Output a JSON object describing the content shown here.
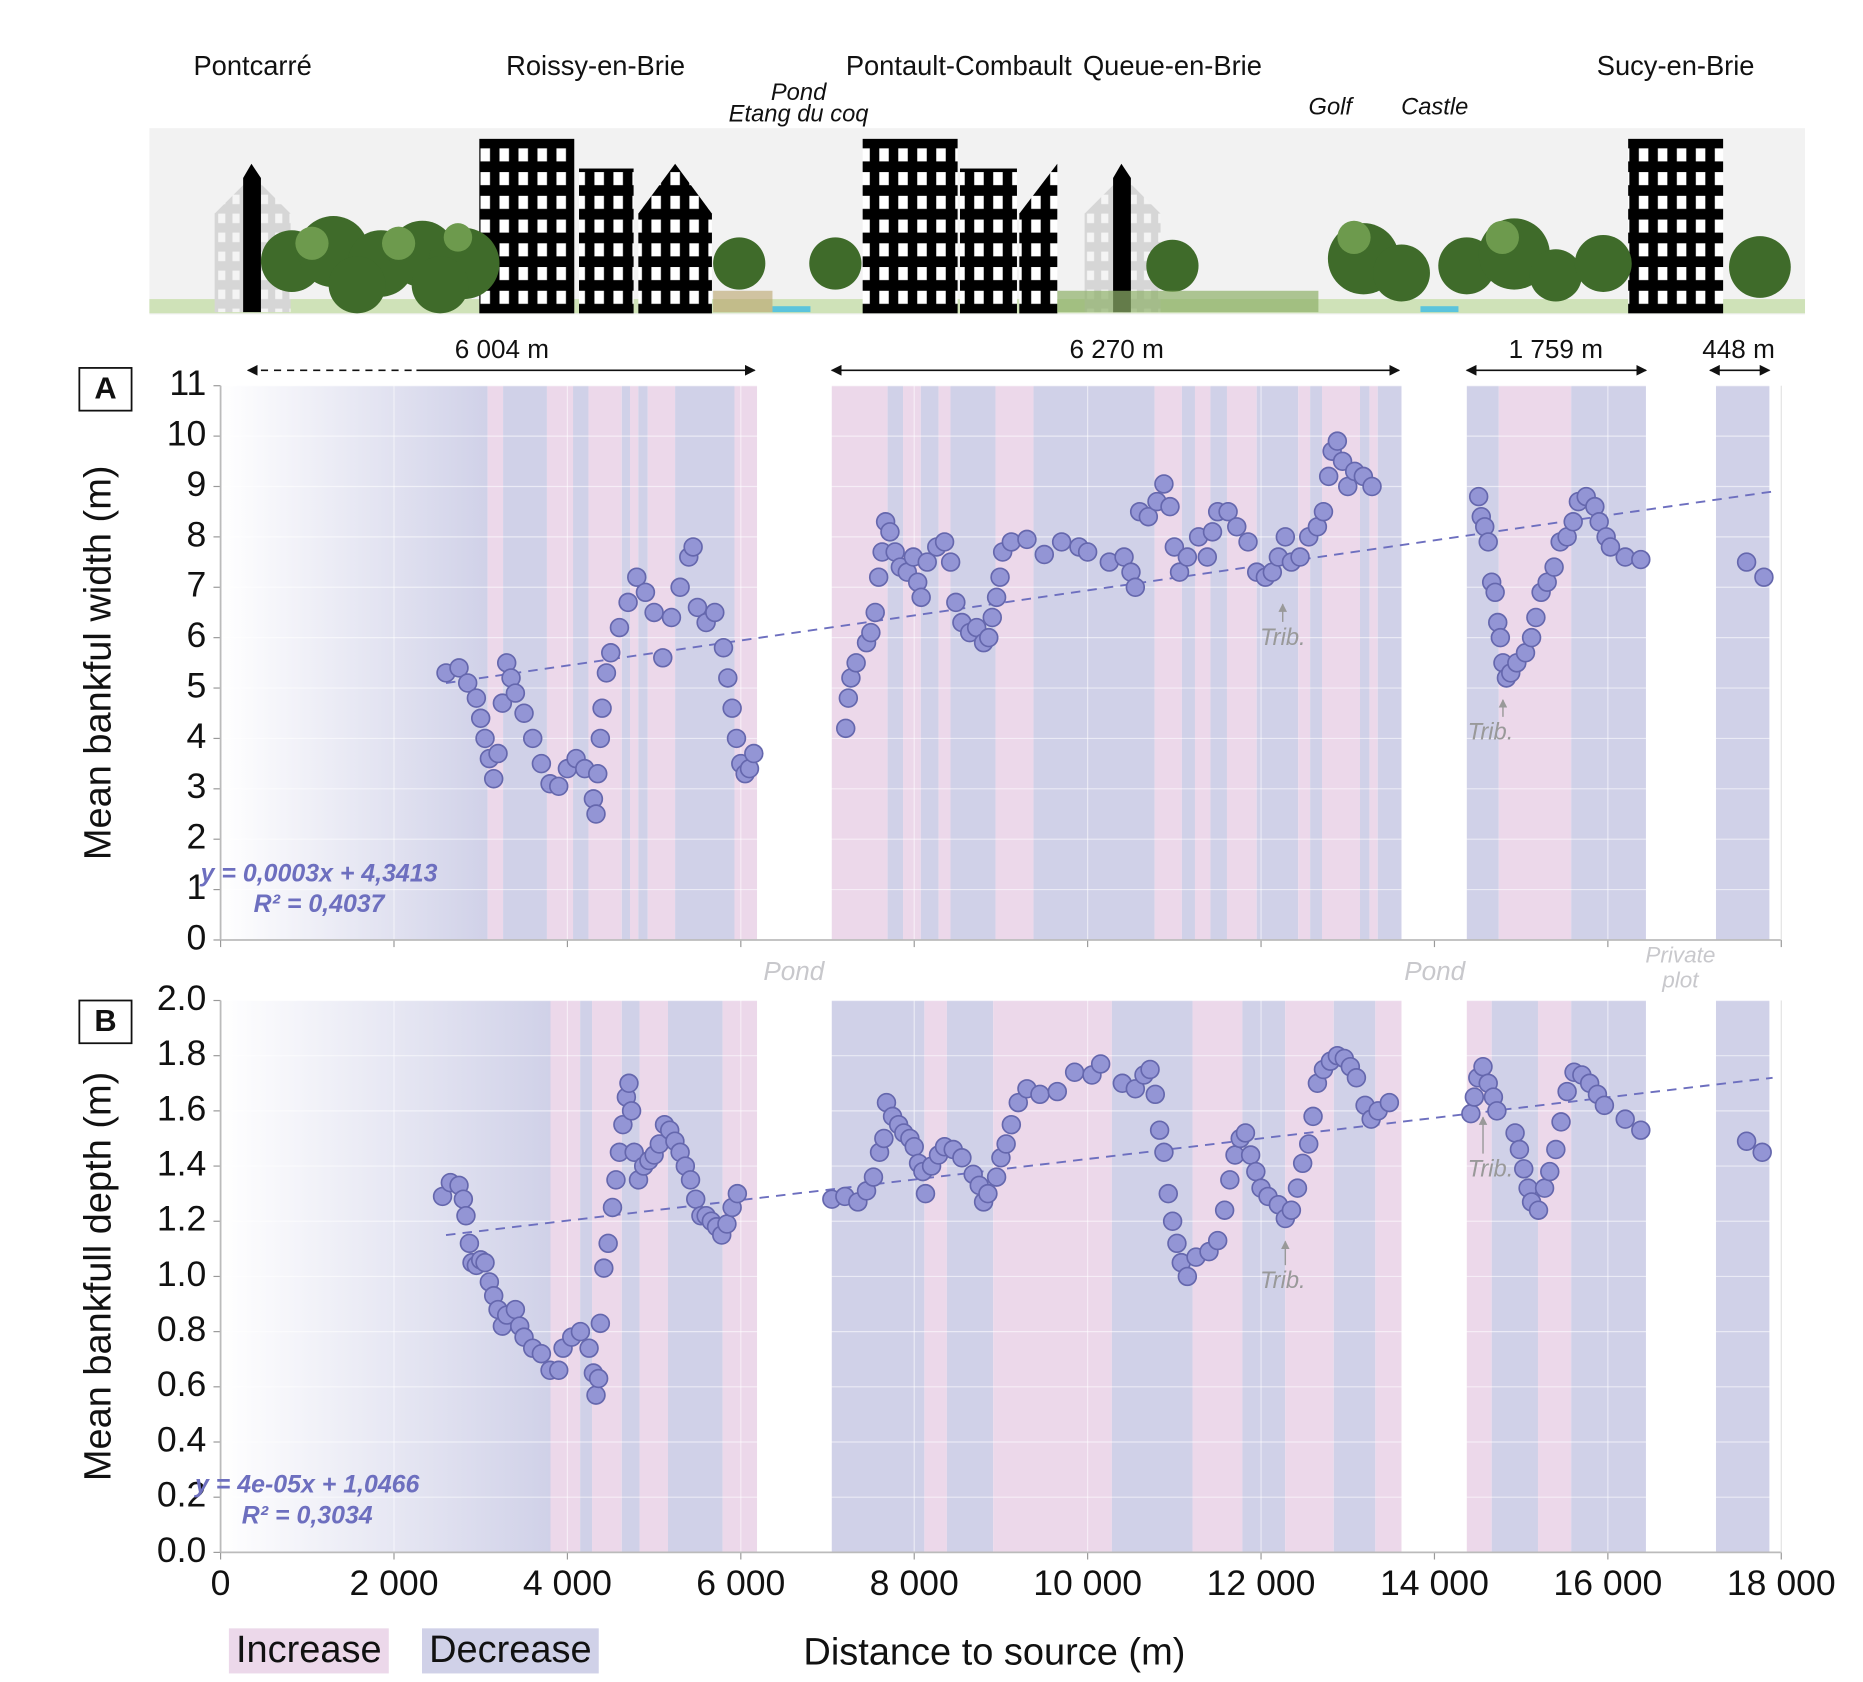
{
  "illustration": {
    "places": [
      "Pontcarré",
      "Roissy-en-Brie",
      "Pontault-Combault",
      "Queue-en-Brie",
      "Sucy-en-Brie"
    ],
    "features": [
      "Pond",
      "Etang du coq",
      "Golf",
      "Castle"
    ],
    "distances": [
      "6 004  m",
      "6 270 m",
      "1 759 m",
      "448 m"
    ],
    "gap_labels": [
      "Pond",
      "Pond",
      "Private",
      "plot"
    ]
  },
  "chart_data": [
    {
      "type": "scatter",
      "panel": "A",
      "ylabel": "Mean bankful width (m)",
      "xlim": [
        0,
        18000
      ],
      "ylim": [
        0,
        11
      ],
      "xticks": [
        0,
        2000,
        4000,
        6000,
        8000,
        10000,
        12000,
        14000,
        16000,
        18000
      ],
      "yticks": [
        0,
        1,
        2,
        3,
        4,
        5,
        6,
        7,
        8,
        9,
        10,
        11
      ],
      "grid": true,
      "color": "#9395d5",
      "bands": [
        {
          "from": 0,
          "to": 3080,
          "color": "#d0d1e8"
        },
        {
          "from": 3080,
          "to": 3258,
          "color": "#ecd8ea"
        },
        {
          "from": 3258,
          "to": 3764,
          "color": "#d0d1e8"
        },
        {
          "from": 3764,
          "to": 4065,
          "color": "#ecd8ea"
        },
        {
          "from": 4065,
          "to": 4243,
          "color": "#d0d1e8"
        },
        {
          "from": 4243,
          "to": 4627,
          "color": "#ecd8ea"
        },
        {
          "from": 4627,
          "to": 4722,
          "color": "#d0d1e8"
        },
        {
          "from": 4722,
          "to": 4818,
          "color": "#ecd8ea"
        },
        {
          "from": 4818,
          "to": 4927,
          "color": "#d0d1e8"
        },
        {
          "from": 4927,
          "to": 5242,
          "color": "#ecd8ea"
        },
        {
          "from": 5242,
          "to": 5927,
          "color": "#d0d1e8"
        },
        {
          "from": 5927,
          "to": 6187,
          "color": "#ecd8ea"
        },
        {
          "from": 7049,
          "to": 7693,
          "color": "#ecd8ea"
        },
        {
          "from": 7693,
          "to": 7871,
          "color": "#d0d1e8"
        },
        {
          "from": 7871,
          "to": 8076,
          "color": "#ecd8ea"
        },
        {
          "from": 8076,
          "to": 8281,
          "color": "#d0d1e8"
        },
        {
          "from": 8281,
          "to": 8418,
          "color": "#ecd8ea"
        },
        {
          "from": 8418,
          "to": 8938,
          "color": "#d0d1e8"
        },
        {
          "from": 8938,
          "to": 9376,
          "color": "#ecd8ea"
        },
        {
          "from": 9376,
          "to": 10772,
          "color": "#d0d1e8"
        },
        {
          "from": 10772,
          "to": 11087,
          "color": "#ecd8ea"
        },
        {
          "from": 11087,
          "to": 11238,
          "color": "#d0d1e8"
        },
        {
          "from": 11238,
          "to": 11416,
          "color": "#ecd8ea"
        },
        {
          "from": 11416,
          "to": 11607,
          "color": "#d0d1e8"
        },
        {
          "from": 11607,
          "to": 11950,
          "color": "#ecd8ea"
        },
        {
          "from": 11950,
          "to": 12429,
          "color": "#d0d1e8"
        },
        {
          "from": 12429,
          "to": 12566,
          "color": "#ecd8ea"
        },
        {
          "from": 12566,
          "to": 12703,
          "color": "#d0d1e8"
        },
        {
          "from": 12703,
          "to": 13141,
          "color": "#ecd8ea"
        },
        {
          "from": 13141,
          "to": 13250,
          "color": "#d0d1e8"
        },
        {
          "from": 13250,
          "to": 13346,
          "color": "#ecd8ea"
        },
        {
          "from": 13346,
          "to": 13620,
          "color": "#d0d1e8"
        },
        {
          "from": 14373,
          "to": 14742,
          "color": "#d0d1e8"
        },
        {
          "from": 14742,
          "to": 15577,
          "color": "#ecd8ea"
        },
        {
          "from": 15577,
          "to": 16439,
          "color": "#d0d1e8"
        },
        {
          "from": 17247,
          "to": 17863,
          "color": "#d0d1e8"
        }
      ],
      "x": [
        2600,
        2750,
        2850,
        2950,
        3000,
        3050,
        3100,
        3150,
        3200,
        3250,
        3300,
        3350,
        3400,
        3500,
        3600,
        3700,
        3800,
        3900,
        4000,
        4100,
        4200,
        4300,
        4330,
        4350,
        4380,
        4400,
        4450,
        4500,
        4600,
        4700,
        4800,
        4900,
        5000,
        5100,
        5200,
        5300,
        5400,
        5450,
        5500,
        5600,
        5700,
        5800,
        5850,
        5900,
        5950,
        6000,
        6050,
        6100,
        6150,
        7210,
        7240,
        7270,
        7330,
        7450,
        7500,
        7550,
        7590,
        7630,
        7670,
        7720,
        7780,
        7840,
        7920,
        7990,
        8040,
        8080,
        8150,
        8260,
        8350,
        8420,
        8480,
        8550,
        8640,
        8720,
        8800,
        8860,
        8900,
        8950,
        8990,
        9020,
        9120,
        9300,
        9500,
        9700,
        9900,
        10000,
        10250,
        10420,
        10500,
        10550,
        10600,
        10700,
        10800,
        10880,
        10950,
        11000,
        11060,
        11150,
        11280,
        11380,
        11440,
        11500,
        11620,
        11720,
        11850,
        11950,
        12050,
        12130,
        12200,
        12280,
        12350,
        12450,
        12550,
        12650,
        12720,
        12780,
        12820,
        12880,
        12940,
        13000,
        13080,
        13180,
        13280,
        14510,
        14540,
        14580,
        14620,
        14660,
        14700,
        14730,
        14760,
        14790,
        14830,
        14880,
        14950,
        15050,
        15120,
        15170,
        15230,
        15300,
        15380,
        15450,
        15530,
        15600,
        15660,
        15750,
        15850,
        15900,
        15980,
        16030,
        16200,
        16380,
        17600,
        17800
      ],
      "values": [
        5.3,
        5.4,
        5.1,
        4.8,
        4.4,
        4.0,
        3.6,
        3.2,
        3.7,
        4.7,
        5.5,
        5.2,
        4.9,
        4.5,
        4.0,
        3.5,
        3.1,
        3.05,
        3.4,
        3.6,
        3.4,
        2.8,
        2.5,
        3.3,
        4.0,
        4.6,
        5.3,
        5.7,
        6.2,
        6.7,
        7.2,
        6.9,
        6.5,
        5.6,
        6.4,
        7.0,
        7.6,
        7.8,
        6.6,
        6.3,
        6.5,
        5.8,
        5.2,
        4.6,
        4.0,
        3.5,
        3.3,
        3.4,
        3.7,
        4.2,
        4.8,
        5.2,
        5.5,
        5.9,
        6.1,
        6.5,
        7.2,
        7.7,
        8.3,
        8.1,
        7.7,
        7.4,
        7.3,
        7.6,
        7.1,
        6.8,
        7.5,
        7.8,
        7.9,
        7.5,
        6.7,
        6.3,
        6.1,
        6.2,
        5.9,
        6.0,
        6.4,
        6.8,
        7.2,
        7.7,
        7.9,
        7.95,
        7.65,
        7.9,
        7.8,
        7.7,
        7.5,
        7.6,
        7.3,
        7.0,
        8.5,
        8.4,
        8.7,
        9.05,
        8.6,
        7.8,
        7.3,
        7.6,
        8.0,
        7.6,
        8.1,
        8.5,
        8.5,
        8.2,
        7.9,
        7.3,
        7.2,
        7.3,
        7.6,
        8.0,
        7.5,
        7.6,
        8.0,
        8.2,
        8.5,
        9.2,
        9.7,
        9.9,
        9.5,
        9.0,
        9.3,
        9.2,
        9.0,
        8.8,
        8.4,
        8.2,
        7.9,
        7.1,
        6.9,
        6.3,
        6.0,
        5.5,
        5.2,
        5.3,
        5.5,
        5.7,
        6.0,
        6.4,
        6.9,
        7.1,
        7.4,
        7.9,
        8.0,
        8.3,
        8.7,
        8.8,
        8.6,
        8.3,
        8.0,
        7.8,
        7.6,
        7.55,
        7.5,
        7.2
      ],
      "trendline": {
        "x": [
          2600,
          17900
        ],
        "y": [
          5.1,
          8.9
        ]
      },
      "equation": "y = 0,0003x + 4,3413",
      "r2": "R² = 0,4037",
      "annotations": [
        "Trib.",
        "Trib."
      ]
    },
    {
      "type": "scatter",
      "panel": "B",
      "ylabel": "Mean  bankfull depth (m)",
      "xlabel": "Distance to source (m)",
      "xlim": [
        0,
        18000
      ],
      "ylim": [
        0,
        2
      ],
      "xticks": [
        0,
        {
          "value": 2000,
          "label": "2 000"
        },
        {
          "value": 4000,
          "label": "4 000"
        },
        {
          "value": 6000,
          "label": "6 000"
        },
        {
          "value": 8000,
          "label": "8 000"
        },
        {
          "value": 10000,
          "label": "10 000"
        },
        {
          "value": 12000,
          "label": "12 000"
        },
        {
          "value": 14000,
          "label": "14 000"
        },
        {
          "value": 16000,
          "label": "16 000"
        },
        {
          "value": 18000,
          "label": "18 000"
        }
      ],
      "yticks": [
        {
          "value": 0,
          "label": "0.0"
        },
        0.2,
        0.4,
        0.6,
        0.8,
        {
          "value": 1,
          "label": "1.0"
        },
        1.2,
        1.4,
        1.6,
        1.8,
        {
          "value": 2,
          "label": "2.0"
        }
      ],
      "grid": true,
      "color": "#9395d5",
      "band_types": [
        {
          "name": "Increase",
          "color": "#ecd8ea"
        },
        {
          "name": "Decrease",
          "color": "#d0d1e8"
        }
      ],
      "bands": [
        {
          "from": 0,
          "to": 3805,
          "color": "#d0d1e8"
        },
        {
          "from": 3805,
          "to": 4147,
          "color": "#ecd8ea"
        },
        {
          "from": 4147,
          "to": 4284,
          "color": "#d0d1e8"
        },
        {
          "from": 4284,
          "to": 4627,
          "color": "#ecd8ea"
        },
        {
          "from": 4627,
          "to": 4832,
          "color": "#d0d1e8"
        },
        {
          "from": 4832,
          "to": 5160,
          "color": "#ecd8ea"
        },
        {
          "from": 5160,
          "to": 5790,
          "color": "#d0d1e8"
        },
        {
          "from": 5790,
          "to": 6187,
          "color": "#ecd8ea"
        },
        {
          "from": 7049,
          "to": 8117,
          "color": "#d0d1e8"
        },
        {
          "from": 8117,
          "to": 8377,
          "color": "#ecd8ea"
        },
        {
          "from": 8377,
          "to": 8911,
          "color": "#d0d1e8"
        },
        {
          "from": 8911,
          "to": 10280,
          "color": "#ecd8ea"
        },
        {
          "from": 10280,
          "to": 11210,
          "color": "#d0d1e8"
        },
        {
          "from": 11210,
          "to": 11785,
          "color": "#ecd8ea"
        },
        {
          "from": 11785,
          "to": 12278,
          "color": "#d0d1e8"
        },
        {
          "from": 12278,
          "to": 12839,
          "color": "#ecd8ea"
        },
        {
          "from": 12839,
          "to": 13318,
          "color": "#d0d1e8"
        },
        {
          "from": 13318,
          "to": 13620,
          "color": "#ecd8ea"
        },
        {
          "from": 14373,
          "to": 14660,
          "color": "#ecd8ea"
        },
        {
          "from": 14660,
          "to": 15194,
          "color": "#d0d1e8"
        },
        {
          "from": 15194,
          "to": 15577,
          "color": "#ecd8ea"
        },
        {
          "from": 15577,
          "to": 16439,
          "color": "#d0d1e8"
        },
        {
          "from": 17247,
          "to": 17863,
          "color": "#d0d1e8"
        }
      ],
      "x": [
        2560,
        2650,
        2750,
        2800,
        2830,
        2870,
        2900,
        2950,
        3000,
        3050,
        3100,
        3150,
        3200,
        3250,
        3300,
        3400,
        3450,
        3500,
        3600,
        3700,
        3800,
        3900,
        3950,
        4050,
        4150,
        4250,
        4300,
        4330,
        4360,
        4380,
        4420,
        4470,
        4520,
        4560,
        4600,
        4640,
        4680,
        4710,
        4740,
        4770,
        4820,
        4880,
        4940,
        5000,
        5060,
        5120,
        5180,
        5240,
        5300,
        5360,
        5420,
        5480,
        5540,
        5600,
        5660,
        5720,
        5780,
        5840,
        5900,
        5960,
        7050,
        7200,
        7350,
        7450,
        7530,
        7600,
        7650,
        7680,
        7750,
        7820,
        7880,
        7950,
        8000,
        8050,
        8100,
        8130,
        8200,
        8280,
        8350,
        8450,
        8550,
        8680,
        8750,
        8800,
        8850,
        8950,
        9000,
        9060,
        9120,
        9200,
        9300,
        9450,
        9650,
        9850,
        10050,
        10150,
        10400,
        10550,
        10650,
        10720,
        10780,
        10830,
        10880,
        10930,
        10980,
        11030,
        11080,
        11150,
        11250,
        11400,
        11500,
        11580,
        11640,
        11700,
        11760,
        11820,
        11880,
        11940,
        12000,
        12080,
        12200,
        12280,
        12350,
        12420,
        12480,
        12550,
        12600,
        12650,
        12720,
        12800,
        12880,
        12960,
        13030,
        13100,
        13200,
        13270,
        13350,
        13480,
        14420,
        14460,
        14500,
        14560,
        14620,
        14680,
        14720,
        14930,
        14980,
        15030,
        15080,
        15120,
        15200,
        15270,
        15330,
        15400,
        15460,
        15530,
        15610,
        15700,
        15790,
        15880,
        15960,
        16200,
        16380,
        17600,
        17780
      ],
      "values": [
        1.29,
        1.34,
        1.33,
        1.28,
        1.22,
        1.12,
        1.05,
        1.04,
        1.06,
        1.05,
        0.98,
        0.93,
        0.88,
        0.82,
        0.86,
        0.88,
        0.82,
        0.78,
        0.74,
        0.72,
        0.66,
        0.66,
        0.74,
        0.78,
        0.8,
        0.74,
        0.65,
        0.57,
        0.63,
        0.83,
        1.03,
        1.12,
        1.25,
        1.35,
        1.45,
        1.55,
        1.65,
        1.7,
        1.6,
        1.45,
        1.35,
        1.4,
        1.42,
        1.44,
        1.48,
        1.55,
        1.53,
        1.49,
        1.45,
        1.4,
        1.35,
        1.28,
        1.22,
        1.22,
        1.2,
        1.18,
        1.15,
        1.19,
        1.25,
        1.3,
        1.28,
        1.29,
        1.27,
        1.31,
        1.36,
        1.45,
        1.5,
        1.63,
        1.58,
        1.55,
        1.52,
        1.5,
        1.47,
        1.41,
        1.38,
        1.3,
        1.4,
        1.44,
        1.47,
        1.46,
        1.43,
        1.37,
        1.33,
        1.27,
        1.3,
        1.36,
        1.43,
        1.48,
        1.55,
        1.63,
        1.68,
        1.66,
        1.67,
        1.74,
        1.73,
        1.77,
        1.7,
        1.68,
        1.73,
        1.75,
        1.66,
        1.53,
        1.45,
        1.3,
        1.2,
        1.12,
        1.05,
        1.0,
        1.07,
        1.09,
        1.13,
        1.24,
        1.35,
        1.44,
        1.5,
        1.52,
        1.44,
        1.38,
        1.32,
        1.29,
        1.26,
        1.21,
        1.24,
        1.32,
        1.41,
        1.48,
        1.58,
        1.7,
        1.75,
        1.78,
        1.8,
        1.79,
        1.76,
        1.72,
        1.62,
        1.57,
        1.6,
        1.63,
        1.59,
        1.65,
        1.72,
        1.76,
        1.7,
        1.65,
        1.6,
        1.52,
        1.46,
        1.39,
        1.32,
        1.27,
        1.24,
        1.32,
        1.38,
        1.46,
        1.56,
        1.67,
        1.74,
        1.73,
        1.7,
        1.66,
        1.62,
        1.57,
        1.53,
        1.49,
        1.45
      ],
      "trendline": {
        "x": [
          2600,
          17900
        ],
        "y": [
          1.15,
          1.72
        ]
      },
      "equation": "y = 4e-05x + 1,0466",
      "r2": "R² = 0,3034",
      "annotations": [
        "Trib.",
        "Trib."
      ]
    }
  ]
}
